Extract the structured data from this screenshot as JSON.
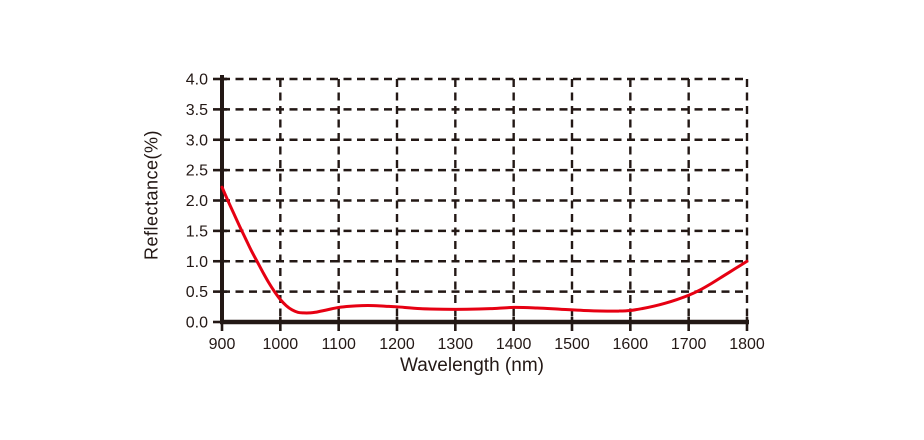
{
  "chart_data": {
    "type": "line",
    "title": "",
    "xlabel": "Wavelength (nm)",
    "ylabel": "Reflectance(%)",
    "xlim": [
      900,
      1800
    ],
    "ylim": [
      0.0,
      4.0
    ],
    "xtick_values": [
      900,
      1000,
      1100,
      1200,
      1300,
      1400,
      1500,
      1600,
      1700,
      1800
    ],
    "xtick_labels": [
      "900",
      "1000",
      "1100",
      "1200",
      "1300",
      "1400",
      "1500",
      "1600",
      "1700",
      "1800"
    ],
    "ytick_values": [
      0.0,
      0.5,
      1.0,
      1.5,
      2.0,
      2.5,
      3.0,
      3.5,
      4.0
    ],
    "ytick_labels": [
      "0.0",
      "0.5",
      "1.0",
      "1.5",
      "2.0",
      "2.5",
      "3.0",
      "3.5",
      "4.0"
    ],
    "grid": {
      "style": "dashed",
      "color": "#231815"
    },
    "legend": "none",
    "axis_color": "#231815",
    "background": "#ffffff",
    "series": [
      {
        "label": "reflectance",
        "color": "#e60012",
        "x": [
          900,
          910,
          920,
          930,
          940,
          950,
          960,
          970,
          980,
          990,
          1000,
          1010,
          1020,
          1030,
          1040,
          1050,
          1060,
          1080,
          1100,
          1120,
          1140,
          1160,
          1180,
          1200,
          1240,
          1280,
          1320,
          1360,
          1400,
          1440,
          1480,
          1520,
          1560,
          1580,
          1600,
          1620,
          1640,
          1660,
          1680,
          1700,
          1720,
          1740,
          1760,
          1780,
          1800
        ],
        "y": [
          2.22,
          2.0,
          1.79,
          1.58,
          1.38,
          1.18,
          1.0,
          0.82,
          0.65,
          0.5,
          0.37,
          0.27,
          0.2,
          0.16,
          0.15,
          0.15,
          0.16,
          0.2,
          0.24,
          0.26,
          0.27,
          0.27,
          0.26,
          0.25,
          0.22,
          0.21,
          0.21,
          0.22,
          0.24,
          0.23,
          0.21,
          0.19,
          0.18,
          0.18,
          0.19,
          0.22,
          0.26,
          0.31,
          0.37,
          0.44,
          0.53,
          0.64,
          0.76,
          0.88,
          1.0
        ]
      }
    ]
  }
}
